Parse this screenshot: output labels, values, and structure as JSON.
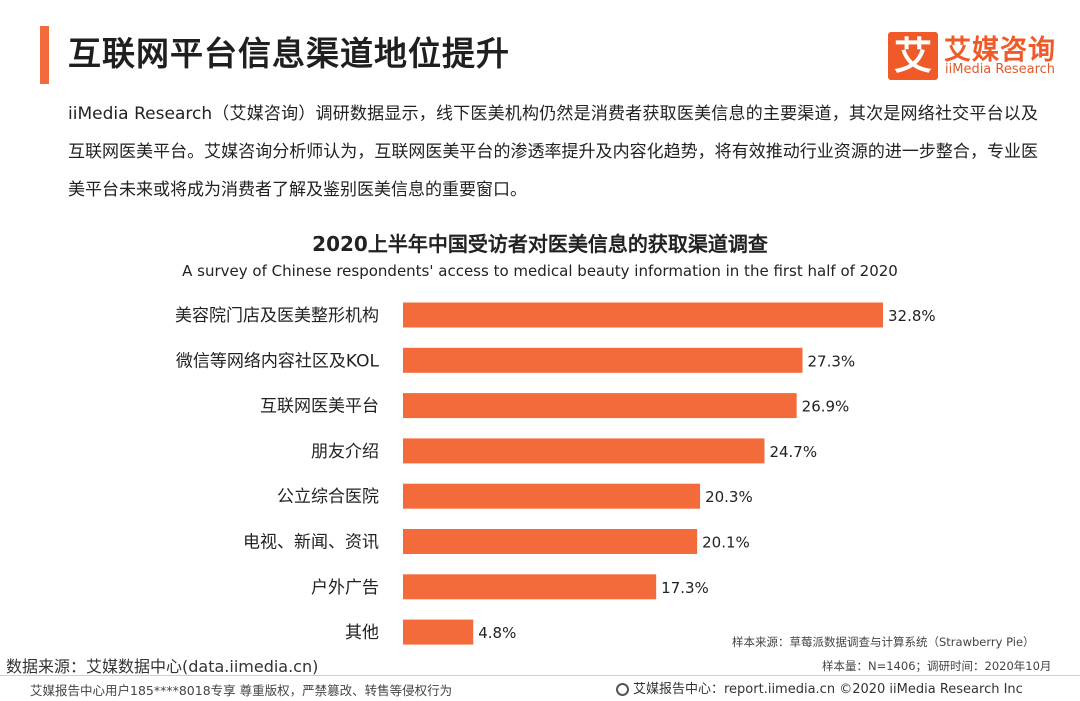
{
  "header": {
    "title": "互联网平台信息渠道地位提升",
    "logo_mark": "艾",
    "logo_cn": "艾媒咨询",
    "logo_en": "iiMedia Research",
    "accent_color": "#f36b3b"
  },
  "intro": "iiMedia Research（艾媒咨询）调研数据显示，线下医美机构仍然是消费者获取医美信息的主要渠道，其次是网络社交平台以及互联网医美平台。艾媒咨询分析师认为，互联网医美平台的渗透率提升及内容化趋势，将有效推动行业资源的进一步整合，专业医美平台未来或将成为消费者了解及鉴别医美信息的重要窗口。",
  "chart_data": {
    "type": "bar",
    "orientation": "horizontal",
    "title": "2020上半年中国受访者对医美信息的获取渠道调查",
    "subtitle": "A survey of Chinese respondents' access to medical beauty information in the first half of 2020",
    "categories": [
      "美容院门店及医美整形机构",
      "微信等网络内容社区及KOL",
      "互联网医美平台",
      "朋友介绍",
      "公立综合医院",
      "电视、新闻、资讯",
      "户外广告",
      "其他"
    ],
    "values": [
      32.8,
      27.3,
      26.9,
      24.7,
      20.3,
      20.1,
      17.3,
      4.8
    ],
    "value_labels": [
      "32.8%",
      "27.3%",
      "26.9%",
      "24.7%",
      "20.3%",
      "20.1%",
      "17.3%",
      "4.8%"
    ],
    "unit": "%",
    "xlim": [
      0,
      32.8
    ],
    "bar_color": "#f36b3b",
    "grid": false,
    "legend": "none"
  },
  "notes": {
    "sample_source": "样本来源：草莓派数据调查与计算系统（Strawberry Pie）",
    "sample_size": "样本量：N=1406；调研时间：2020年10月"
  },
  "source": "数据来源：艾媒数据中心(data.iimedia.cn)",
  "footer": {
    "left": "艾媒报告中心用户185****8018专享 尊重版权，严禁篡改、转售等侵权行为",
    "right": "艾媒报告中心：report.iimedia.cn   ©2020  iiMedia Research  Inc"
  }
}
